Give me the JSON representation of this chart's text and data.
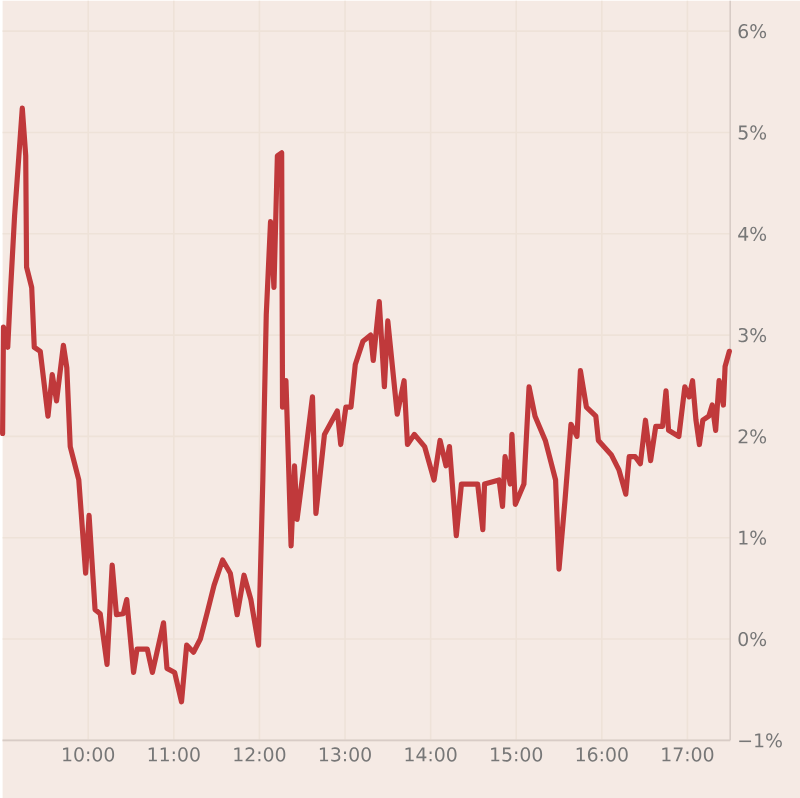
{
  "chart_data": {
    "type": "line",
    "x": [
      9.0,
      9.01,
      9.06,
      9.09,
      9.14,
      9.23,
      9.27,
      9.28,
      9.34,
      9.37,
      9.44,
      9.53,
      9.58,
      9.63,
      9.71,
      9.75,
      9.79,
      9.89,
      9.97,
      10.01,
      10.08,
      10.14,
      10.22,
      10.28,
      10.33,
      10.41,
      10.45,
      10.53,
      10.57,
      10.69,
      10.75,
      10.88,
      10.92,
      11.01,
      11.09,
      11.15,
      11.23,
      11.31,
      11.39,
      11.47,
      11.57,
      11.66,
      11.74,
      11.82,
      11.9,
      11.99,
      12.04,
      12.08,
      12.13,
      12.17,
      12.21,
      12.26,
      12.27,
      12.31,
      12.37,
      12.41,
      12.44,
      12.52,
      12.62,
      12.66,
      12.76,
      12.91,
      12.95,
      13.01,
      13.07,
      13.12,
      13.21,
      13.3,
      13.33,
      13.4,
      13.46,
      13.5,
      13.61,
      13.69,
      13.73,
      13.81,
      13.93,
      14.04,
      14.11,
      14.18,
      14.22,
      14.3,
      14.36,
      14.55,
      14.61,
      14.63,
      14.8,
      14.84,
      14.87,
      14.93,
      14.95,
      14.99,
      15.09,
      15.15,
      15.22,
      15.34,
      15.46,
      15.5,
      15.57,
      15.64,
      15.71,
      15.75,
      15.82,
      15.93,
      15.96,
      16.11,
      16.2,
      16.28,
      16.32,
      16.39,
      16.45,
      16.51,
      16.57,
      16.63,
      16.71,
      16.75,
      16.78,
      16.9,
      16.97,
      17.02,
      17.06,
      17.1,
      17.14,
      17.18,
      17.25,
      17.29,
      17.33,
      17.37,
      17.42,
      17.44,
      17.49
    ],
    "series": [
      {
        "color": "#c0393b",
        "values": [
          2.03,
          3.08,
          2.88,
          3.4,
          4.18,
          5.24,
          4.77,
          3.67,
          3.47,
          2.88,
          2.84,
          2.2,
          2.61,
          2.35,
          2.9,
          2.68,
          1.9,
          1.57,
          0.65,
          1.22,
          0.29,
          0.25,
          -0.25,
          0.73,
          0.24,
          0.25,
          0.39,
          -0.33,
          -0.1,
          -0.1,
          -0.33,
          0.16,
          -0.29,
          -0.33,
          -0.62,
          -0.06,
          -0.13,
          0,
          0.26,
          0.53,
          0.78,
          0.65,
          0.24,
          0.63,
          0.39,
          -0.06,
          1.57,
          3.2,
          4.12,
          3.47,
          4.77,
          4.8,
          2.29,
          2.55,
          0.92,
          1.71,
          1.18,
          1.71,
          2.39,
          1.24,
          2.02,
          2.25,
          1.92,
          2.29,
          2.29,
          2.71,
          2.94,
          3.0,
          2.75,
          3.33,
          2.49,
          3.14,
          2.22,
          2.55,
          1.92,
          2.02,
          1.9,
          1.57,
          1.96,
          1.71,
          1.9,
          1.02,
          1.53,
          1.53,
          1.08,
          1.53,
          1.57,
          1.31,
          1.8,
          1.53,
          2.02,
          1.33,
          1.53,
          2.49,
          2.2,
          1.96,
          1.57,
          0.69,
          1.37,
          2.12,
          2.0,
          2.65,
          2.29,
          2.2,
          1.96,
          1.82,
          1.67,
          1.43,
          1.8,
          1.8,
          1.73,
          2.16,
          1.76,
          2.1,
          2.1,
          2.45,
          2.06,
          2.0,
          2.49,
          2.39,
          2.55,
          2.16,
          1.92,
          2.16,
          2.2,
          2.31,
          2.06,
          2.55,
          2.31,
          2.69,
          2.84
        ]
      }
    ],
    "xlim": [
      9,
      17.5
    ],
    "xticks": [
      {
        "value": 10,
        "label": "10:00"
      },
      {
        "value": 11,
        "label": "11:00"
      },
      {
        "value": 12,
        "label": "12:00"
      },
      {
        "value": 13,
        "label": "13:00"
      },
      {
        "value": 14,
        "label": "14:00"
      },
      {
        "value": 15,
        "label": "15:00"
      },
      {
        "value": 16,
        "label": "16:00"
      },
      {
        "value": 17,
        "label": "17:00"
      }
    ],
    "ylim": [
      -1,
      6.3
    ],
    "yticks": [
      {
        "value": -1,
        "label": "−1%"
      },
      {
        "value": 0,
        "label": "0%"
      },
      {
        "value": 1,
        "label": "1%"
      },
      {
        "value": 2,
        "label": "2%"
      },
      {
        "value": 3,
        "label": "3%"
      },
      {
        "value": 4,
        "label": "4%"
      },
      {
        "value": 5,
        "label": "5%"
      },
      {
        "value": 6,
        "label": "6%"
      }
    ],
    "grid": true,
    "marker": "none",
    "line_style": "solid"
  }
}
